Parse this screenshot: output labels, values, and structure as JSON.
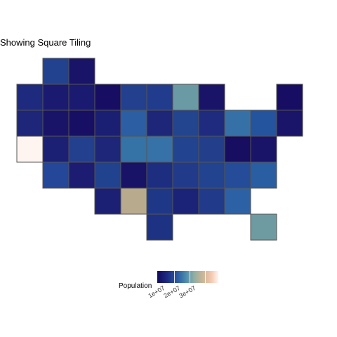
{
  "title": "Showing Square Tiling",
  "legend": {
    "title": "Population",
    "labels": [
      "1e+07",
      "2e+07",
      "3e+07"
    ],
    "colors": [
      "#120a5c",
      "#1d2f86",
      "#2c5ea3",
      "#4f8fae",
      "#8faea3",
      "#c9b597",
      "#f3c7ae",
      "#fff5f0"
    ]
  },
  "tiles": [
    {
      "col": 1,
      "row": 0,
      "color": "#22418f"
    },
    {
      "col": 2,
      "row": 0,
      "color": "#1a1469"
    },
    {
      "col": 0,
      "row": 1,
      "color": "#1d2a7e"
    },
    {
      "col": 1,
      "row": 1,
      "color": "#1a1a70"
    },
    {
      "col": 2,
      "row": 1,
      "color": "#1a1a70"
    },
    {
      "col": 3,
      "row": 1,
      "color": "#170e63"
    },
    {
      "col": 4,
      "row": 1,
      "color": "#23408e"
    },
    {
      "col": 5,
      "row": 1,
      "color": "#213c8c"
    },
    {
      "col": 6,
      "row": 1,
      "color": "#6a9aa3"
    },
    {
      "col": 7,
      "row": 1,
      "color": "#1a1469"
    },
    {
      "col": 10,
      "row": 1,
      "color": "#170e63"
    },
    {
      "col": 0,
      "row": 2,
      "color": "#1d2679"
    },
    {
      "col": 1,
      "row": 2,
      "color": "#1a1468"
    },
    {
      "col": 2,
      "row": 2,
      "color": "#170f64"
    },
    {
      "col": 3,
      "row": 2,
      "color": "#1b1f74"
    },
    {
      "col": 4,
      "row": 2,
      "color": "#2c5ea3"
    },
    {
      "col": 5,
      "row": 2,
      "color": "#1d2679"
    },
    {
      "col": 6,
      "row": 2,
      "color": "#23448f"
    },
    {
      "col": 7,
      "row": 2,
      "color": "#1e2b7e"
    },
    {
      "col": 8,
      "row": 2,
      "color": "#3571a6"
    },
    {
      "col": 9,
      "row": 2,
      "color": "#24549d"
    },
    {
      "col": 10,
      "row": 2,
      "color": "#1a1569"
    },
    {
      "col": 0,
      "row": 3,
      "color": "#fff5f0"
    },
    {
      "col": 1,
      "row": 3,
      "color": "#1b2075"
    },
    {
      "col": 2,
      "row": 3,
      "color": "#22408d"
    },
    {
      "col": 3,
      "row": 3,
      "color": "#1d2679"
    },
    {
      "col": 4,
      "row": 3,
      "color": "#3572a6"
    },
    {
      "col": 5,
      "row": 3,
      "color": "#3672a7"
    },
    {
      "col": 6,
      "row": 3,
      "color": "#22438f"
    },
    {
      "col": 7,
      "row": 3,
      "color": "#233f8c"
    },
    {
      "col": 8,
      "row": 3,
      "color": "#170d61"
    },
    {
      "col": 9,
      "row": 3,
      "color": "#1a1468"
    },
    {
      "col": 1,
      "row": 4,
      "color": "#24479a"
    },
    {
      "col": 2,
      "row": 4,
      "color": "#1b1c72"
    },
    {
      "col": 3,
      "row": 4,
      "color": "#21428e"
    },
    {
      "col": 4,
      "row": 4,
      "color": "#181366"
    },
    {
      "col": 5,
      "row": 4,
      "color": "#1d2d80"
    },
    {
      "col": 6,
      "row": 4,
      "color": "#213a8a"
    },
    {
      "col": 7,
      "row": 4,
      "color": "#22438f"
    },
    {
      "col": 8,
      "row": 4,
      "color": "#244c99"
    },
    {
      "col": 9,
      "row": 4,
      "color": "#2a5ea3"
    },
    {
      "col": 3,
      "row": 5,
      "color": "#1b2075"
    },
    {
      "col": 4,
      "row": 5,
      "color": "#b8aa8c"
    },
    {
      "col": 5,
      "row": 5,
      "color": "#1e3787"
    },
    {
      "col": 6,
      "row": 5,
      "color": "#1b2378"
    },
    {
      "col": 7,
      "row": 5,
      "color": "#213a8a"
    },
    {
      "col": 8,
      "row": 5,
      "color": "#2c62a5"
    },
    {
      "col": 5,
      "row": 6,
      "color": "#1e3284"
    },
    {
      "col": 9,
      "row": 6,
      "color": "#6e9ba1"
    }
  ]
}
